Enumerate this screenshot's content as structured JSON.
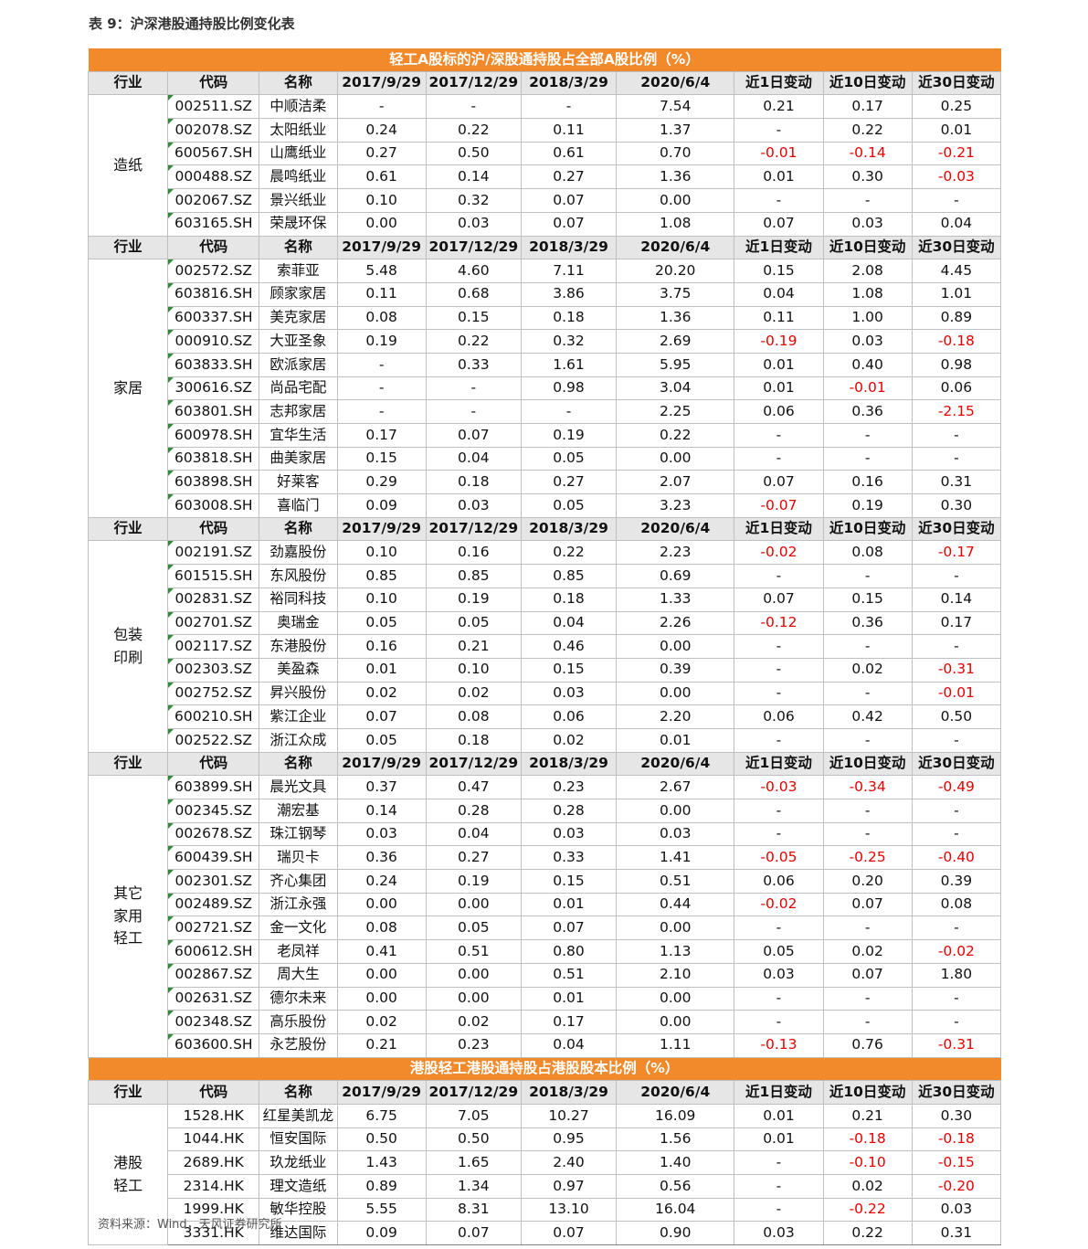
{
  "title": "表 9：沪深港股通持股比例变化表",
  "source": "资料来源：Wind，天风证券研究所",
  "colors": {
    "section": "#f2892a",
    "header": "#e6e6e6",
    "negative": "#e60000"
  },
  "section_a_title": "轻工A股标的沪/深股通持股占全部A股比例（%）",
  "section_hk_title": "港股轻工港股通持股占港股股本比例（%）",
  "headers": [
    "行业",
    "代码",
    "名称",
    "2017/9/29",
    "2017/12/29",
    "2018/3/29",
    "2020/6/4",
    "近1日变动",
    "近10日变动",
    "近30日变动"
  ],
  "groups": [
    {
      "industry": "造纸",
      "rows": [
        [
          "002511.SZ",
          "中顺洁柔",
          "-",
          "-",
          "-",
          "7.54",
          "0.21",
          "0.17",
          "0.25"
        ],
        [
          "002078.SZ",
          "太阳纸业",
          "0.24",
          "0.22",
          "0.11",
          "1.37",
          "-",
          "0.22",
          "0.01"
        ],
        [
          "600567.SH",
          "山鹰纸业",
          "0.27",
          "0.50",
          "0.61",
          "0.70",
          "-0.01",
          "-0.14",
          "-0.21"
        ],
        [
          "000488.SZ",
          "晨鸣纸业",
          "0.61",
          "0.14",
          "0.27",
          "1.36",
          "0.01",
          "0.30",
          "-0.03"
        ],
        [
          "002067.SZ",
          "景兴纸业",
          "0.10",
          "0.32",
          "0.07",
          "0.00",
          "-",
          "-",
          "-"
        ],
        [
          "603165.SH",
          "荣晟环保",
          "0.00",
          "0.03",
          "0.07",
          "1.08",
          "0.07",
          "0.03",
          "0.04"
        ]
      ]
    },
    {
      "industry": "家居",
      "rows": [
        [
          "002572.SZ",
          "索菲亚",
          "5.48",
          "4.60",
          "7.11",
          "20.20",
          "0.15",
          "2.08",
          "4.45"
        ],
        [
          "603816.SH",
          "顾家家居",
          "0.11",
          "0.68",
          "3.86",
          "3.75",
          "0.04",
          "1.08",
          "1.01"
        ],
        [
          "600337.SH",
          "美克家居",
          "0.08",
          "0.15",
          "0.18",
          "1.36",
          "0.11",
          "1.00",
          "0.89"
        ],
        [
          "000910.SZ",
          "大亚圣象",
          "0.19",
          "0.22",
          "0.32",
          "2.69",
          "-0.19",
          "0.03",
          "-0.18"
        ],
        [
          "603833.SH",
          "欧派家居",
          "-",
          "0.33",
          "1.61",
          "5.95",
          "0.01",
          "0.40",
          "0.98"
        ],
        [
          "300616.SZ",
          "尚品宅配",
          "-",
          "-",
          "0.98",
          "3.04",
          "0.01",
          "-0.01",
          "0.06"
        ],
        [
          "603801.SH",
          "志邦家居",
          "-",
          "-",
          "-",
          "2.25",
          "0.06",
          "0.36",
          "-2.15"
        ],
        [
          "600978.SH",
          "宜华生活",
          "0.17",
          "0.07",
          "0.19",
          "0.22",
          "-",
          "-",
          "-"
        ],
        [
          "603818.SH",
          "曲美家居",
          "0.15",
          "0.04",
          "0.05",
          "0.00",
          "-",
          "-",
          "-"
        ],
        [
          "603898.SH",
          "好莱客",
          "0.29",
          "0.18",
          "0.27",
          "2.07",
          "0.07",
          "0.16",
          "0.31"
        ],
        [
          "603008.SH",
          "喜临门",
          "0.09",
          "0.03",
          "0.05",
          "3.23",
          "-0.07",
          "0.19",
          "0.30"
        ]
      ]
    },
    {
      "industry": "包装\n印刷",
      "rows": [
        [
          "002191.SZ",
          "劲嘉股份",
          "0.10",
          "0.16",
          "0.22",
          "2.23",
          "-0.02",
          "0.08",
          "-0.17"
        ],
        [
          "601515.SH",
          "东风股份",
          "0.85",
          "0.85",
          "0.85",
          "0.69",
          "-",
          "-",
          "-"
        ],
        [
          "002831.SZ",
          "裕同科技",
          "0.10",
          "0.19",
          "0.18",
          "1.33",
          "0.07",
          "0.15",
          "0.14"
        ],
        [
          "002701.SZ",
          "奥瑞金",
          "0.05",
          "0.05",
          "0.04",
          "2.26",
          "-0.12",
          "0.36",
          "0.17"
        ],
        [
          "002117.SZ",
          "东港股份",
          "0.16",
          "0.21",
          "0.46",
          "0.00",
          "-",
          "-",
          "-"
        ],
        [
          "002303.SZ",
          "美盈森",
          "0.01",
          "0.10",
          "0.15",
          "0.39",
          "-",
          "0.02",
          "-0.31"
        ],
        [
          "002752.SZ",
          "昇兴股份",
          "0.02",
          "0.02",
          "0.03",
          "0.00",
          "-",
          "-",
          "-0.01"
        ],
        [
          "600210.SH",
          "紫江企业",
          "0.07",
          "0.08",
          "0.06",
          "2.20",
          "0.06",
          "0.42",
          "0.50"
        ],
        [
          "002522.SZ",
          "浙江众成",
          "0.05",
          "0.18",
          "0.02",
          "0.01",
          "-",
          "-",
          "-"
        ]
      ]
    },
    {
      "industry": "其它\n家用\n轻工",
      "rows": [
        [
          "603899.SH",
          "晨光文具",
          "0.37",
          "0.47",
          "0.23",
          "2.67",
          "-0.03",
          "-0.34",
          "-0.49"
        ],
        [
          "002345.SZ",
          "潮宏基",
          "0.14",
          "0.28",
          "0.28",
          "0.00",
          "-",
          "-",
          "-"
        ],
        [
          "002678.SZ",
          "珠江钢琴",
          "0.03",
          "0.04",
          "0.03",
          "0.03",
          "-",
          "-",
          "-"
        ],
        [
          "600439.SH",
          "瑞贝卡",
          "0.36",
          "0.27",
          "0.33",
          "1.41",
          "-0.05",
          "-0.25",
          "-0.40"
        ],
        [
          "002301.SZ",
          "齐心集团",
          "0.24",
          "0.19",
          "0.15",
          "0.51",
          "0.06",
          "0.20",
          "0.39"
        ],
        [
          "002489.SZ",
          "浙江永强",
          "0.00",
          "0.00",
          "0.01",
          "0.44",
          "-0.02",
          "0.07",
          "0.08"
        ],
        [
          "002721.SZ",
          "金一文化",
          "0.08",
          "0.05",
          "0.07",
          "0.00",
          "-",
          "-",
          "-"
        ],
        [
          "600612.SH",
          "老凤祥",
          "0.41",
          "0.51",
          "0.80",
          "1.13",
          "0.05",
          "0.02",
          "-0.02"
        ],
        [
          "002867.SZ",
          "周大生",
          "0.00",
          "0.00",
          "0.51",
          "2.10",
          "0.03",
          "0.07",
          "1.80"
        ],
        [
          "002631.SZ",
          "德尔未来",
          "0.00",
          "0.00",
          "0.01",
          "0.00",
          "-",
          "-",
          "-"
        ],
        [
          "002348.SZ",
          "高乐股份",
          "0.02",
          "0.02",
          "0.17",
          "0.00",
          "-",
          "-",
          "-"
        ],
        [
          "603600.SH",
          "永艺股份",
          "0.21",
          "0.23",
          "0.04",
          "1.11",
          "-0.13",
          "0.76",
          "-0.31"
        ]
      ]
    }
  ],
  "hk_group": {
    "industry": "港股\n轻工",
    "rows": [
      [
        "1528.HK",
        "红星美凯龙",
        "6.75",
        "7.05",
        "10.27",
        "16.09",
        "0.01",
        "0.21",
        "0.30"
      ],
      [
        "1044.HK",
        "恒安国际",
        "0.50",
        "0.50",
        "0.95",
        "1.56",
        "0.01",
        "-0.18",
        "-0.18"
      ],
      [
        "2689.HK",
        "玖龙纸业",
        "1.43",
        "1.65",
        "2.40",
        "1.40",
        "-",
        "-0.10",
        "-0.15"
      ],
      [
        "2314.HK",
        "理文造纸",
        "0.89",
        "1.34",
        "0.97",
        "0.56",
        "-",
        "0.02",
        "-0.20"
      ],
      [
        "1999.HK",
        "敏华控股",
        "5.55",
        "8.31",
        "13.10",
        "16.04",
        "-",
        "-0.22",
        "0.03"
      ],
      [
        "3331.HK",
        "维达国际",
        "0.09",
        "0.07",
        "0.07",
        "0.90",
        "0.03",
        "0.22",
        "0.31"
      ]
    ]
  }
}
